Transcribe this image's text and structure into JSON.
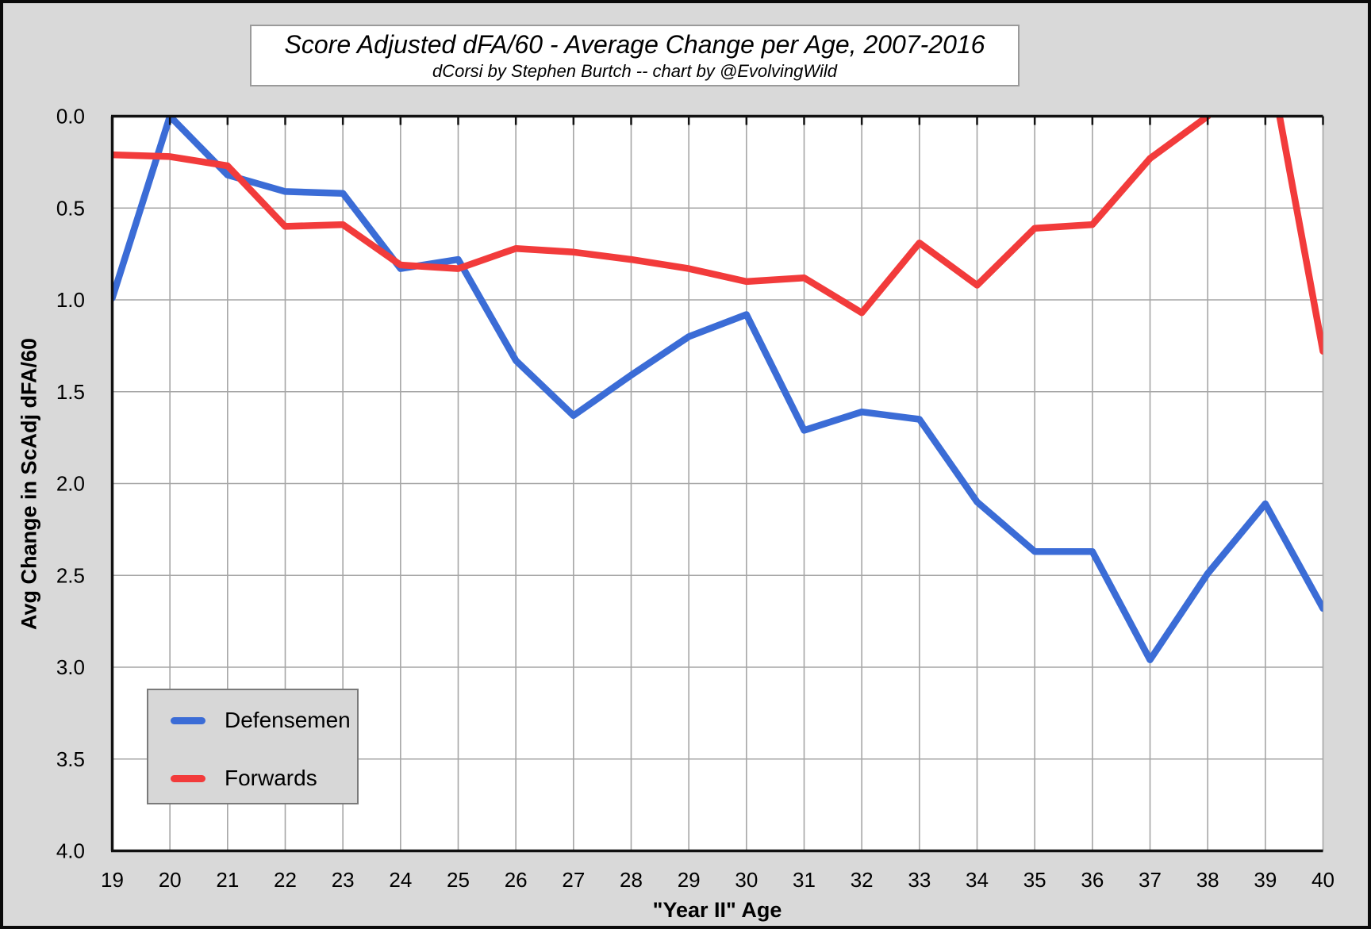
{
  "page": {
    "background_color": "#D9D9D9",
    "plot_background_color": "#FFFFFF"
  },
  "title_box": {
    "title": "Score Adjusted dFA/60 - Average Change per Age, 2007-2016",
    "subtitle": "dCorsi by Stephen Burtch -- chart by @EvolvingWild"
  },
  "axes": {
    "y_title": "Avg Change in ScAdj dFA/60",
    "x_title": "\"Year II\" Age"
  },
  "legend": {
    "items": [
      {
        "label": "Defensemen",
        "color": "#3B6CD6"
      },
      {
        "label": "Forwards",
        "color": "#F23B3B"
      }
    ]
  },
  "chart_data": {
    "type": "line",
    "title": "Score Adjusted dFA/60 - Average Change per Age, 2007-2016",
    "subtitle": "dCorsi by Stephen Burtch -- chart by @EvolvingWild",
    "xlabel": "\"Year II\" Age",
    "ylabel": "Avg Change in ScAdj dFA/60",
    "x": [
      19,
      20,
      21,
      22,
      23,
      24,
      25,
      26,
      27,
      28,
      29,
      30,
      31,
      32,
      33,
      34,
      35,
      36,
      37,
      38,
      39,
      40
    ],
    "x_tick_labels": [
      "19",
      "20",
      "21",
      "22",
      "23",
      "24",
      "25",
      "26",
      "27",
      "28",
      "29",
      "30",
      "31",
      "32",
      "33",
      "34",
      "35",
      "36",
      "37",
      "38",
      "39",
      "40"
    ],
    "y_axis": {
      "min": 0.0,
      "max": 4.0,
      "step": 0.5,
      "inverted": true,
      "tick_labels": [
        "0.0",
        "0.5",
        "1.0",
        "1.5",
        "2.0",
        "2.5",
        "3.0",
        "3.5",
        "4.0"
      ]
    },
    "grid": true,
    "legend_position": "inside-bottom-left",
    "series": [
      {
        "name": "Defensemen",
        "color": "#3B6CD6",
        "values": [
          0.99,
          0.0,
          0.32,
          0.41,
          0.42,
          0.83,
          0.78,
          1.33,
          1.63,
          1.41,
          1.2,
          1.08,
          1.71,
          1.61,
          1.65,
          2.1,
          2.37,
          2.37,
          2.96,
          2.49,
          2.11,
          2.68
        ]
      },
      {
        "name": "Forwards",
        "color": "#F23B3B",
        "values": [
          0.21,
          0.22,
          0.27,
          0.6,
          0.59,
          0.81,
          0.83,
          0.72,
          0.74,
          0.78,
          0.83,
          0.9,
          0.88,
          1.07,
          0.69,
          0.92,
          0.61,
          0.59,
          0.23,
          0.0,
          -0.42,
          1.28
        ]
      }
    ],
    "style": {
      "gridline_color": "#A6A6A6",
      "axis_border_color": "#111111",
      "line_width": 8.5
    }
  }
}
